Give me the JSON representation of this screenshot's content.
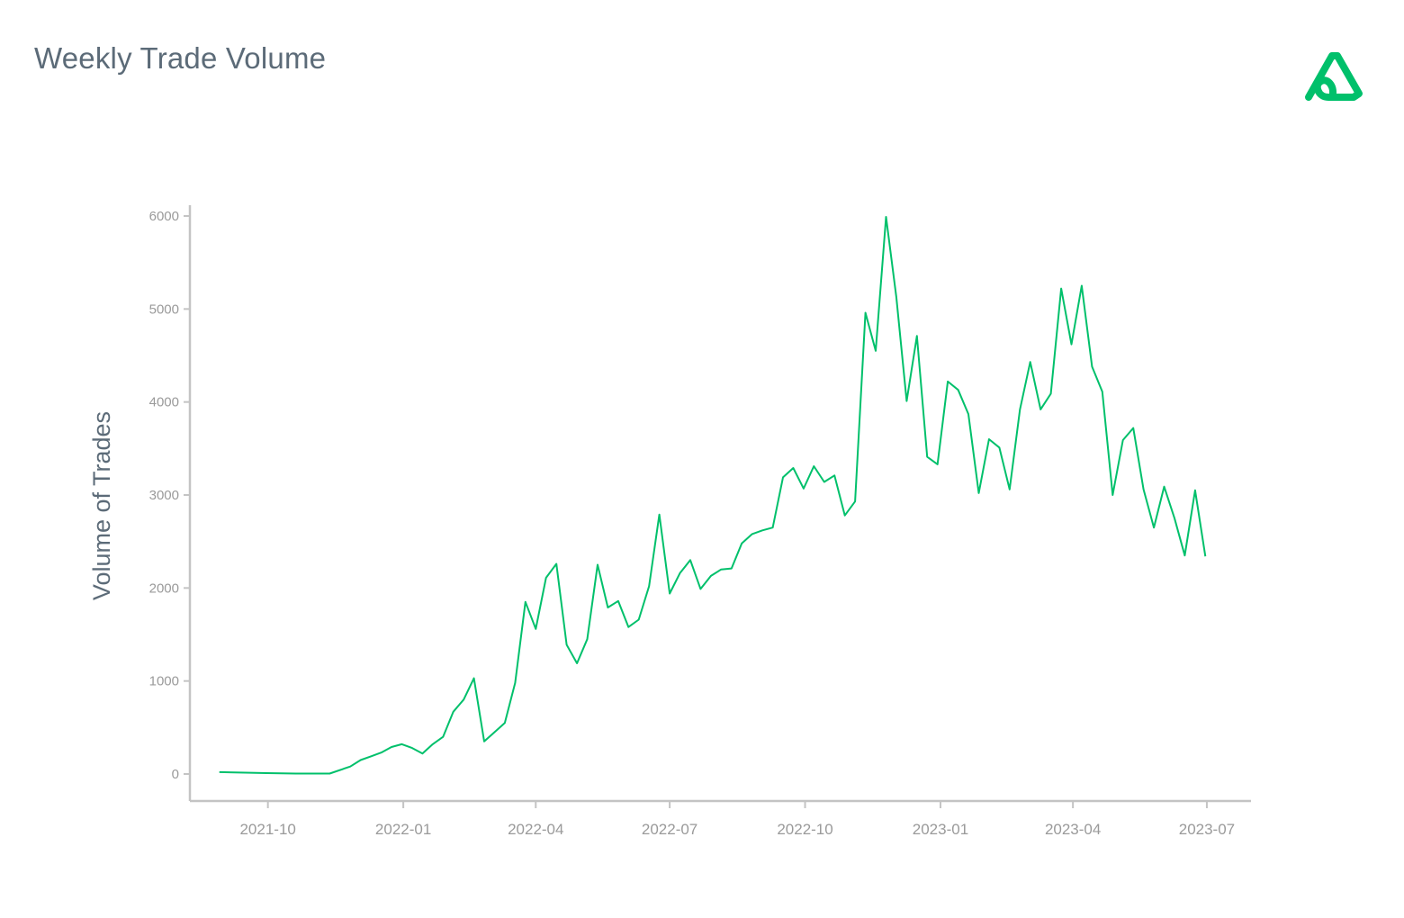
{
  "header": {
    "title": "Weekly Trade Volume",
    "logo_icon": "triangle-loop-logo-icon"
  },
  "colors": {
    "line": "#00c06b",
    "axis": "#c4c4c4",
    "tick_text": "#9a9a9a",
    "title": "#5c6b78"
  },
  "chart_data": {
    "type": "line",
    "title": "Weekly Trade Volume",
    "xlabel": "",
    "ylabel": "Volume of Trades",
    "grid": false,
    "legend": "none",
    "ylim": [
      0,
      6000
    ],
    "xlim": [
      "2021-08-09",
      "2023-07-31"
    ],
    "y_ticks": [
      0,
      1000,
      2000,
      3000,
      4000,
      5000,
      6000
    ],
    "x_ticks": [
      "2021-10",
      "2022-01",
      "2022-04",
      "2022-07",
      "2022-10",
      "2023-01",
      "2023-04",
      "2023-07"
    ],
    "series": [
      {
        "x": [
          "2021-08-29",
          "2021-09-30",
          "2021-10-20",
          "2021-11-12",
          "2021-11-26",
          "2021-12-03",
          "2021-12-10",
          "2021-12-17",
          "2021-12-24",
          "2021-12-31",
          "2022-01-07",
          "2022-01-14",
          "2022-01-21",
          "2022-01-28",
          "2022-02-04",
          "2022-02-11",
          "2022-02-18",
          "2022-02-25",
          "2022-03-04",
          "2022-03-11",
          "2022-03-18",
          "2022-03-25",
          "2022-04-01",
          "2022-04-08",
          "2022-04-15",
          "2022-04-22",
          "2022-04-29",
          "2022-05-06",
          "2022-05-13",
          "2022-05-20",
          "2022-05-27",
          "2022-06-03",
          "2022-06-10",
          "2022-06-17",
          "2022-06-24",
          "2022-07-01",
          "2022-07-08",
          "2022-07-15",
          "2022-07-22",
          "2022-07-29",
          "2022-08-05",
          "2022-08-12",
          "2022-08-19",
          "2022-08-26",
          "2022-09-02",
          "2022-09-09",
          "2022-09-16",
          "2022-09-23",
          "2022-09-30",
          "2022-10-07",
          "2022-10-14",
          "2022-10-21",
          "2022-10-28",
          "2022-11-04",
          "2022-11-11",
          "2022-11-18",
          "2022-11-25",
          "2022-12-02",
          "2022-12-09",
          "2022-12-16",
          "2022-12-23",
          "2022-12-30",
          "2023-01-06",
          "2023-01-13",
          "2023-01-20",
          "2023-01-27",
          "2023-02-03",
          "2023-02-10",
          "2023-02-17",
          "2023-02-24",
          "2023-03-03",
          "2023-03-10",
          "2023-03-17",
          "2023-03-24",
          "2023-03-31",
          "2023-04-07",
          "2023-04-14",
          "2023-04-21",
          "2023-04-28",
          "2023-05-05",
          "2023-05-12",
          "2023-05-19",
          "2023-05-26",
          "2023-06-02",
          "2023-06-09",
          "2023-06-16",
          "2023-06-23",
          "2023-06-30"
        ],
        "y": [
          20,
          10,
          5,
          5,
          80,
          150,
          190,
          230,
          290,
          320,
          280,
          220,
          320,
          400,
          670,
          800,
          1030,
          350,
          450,
          550,
          980,
          1850,
          1560,
          2110,
          2260,
          1390,
          1190,
          1450,
          2250,
          1790,
          1860,
          1580,
          1660,
          2020,
          2790,
          1940,
          2160,
          2300,
          1990,
          2130,
          2200,
          2210,
          2480,
          2580,
          2620,
          2650,
          3190,
          3290,
          3070,
          3310,
          3140,
          3210,
          2780,
          2930,
          4960,
          4550,
          5990,
          5130,
          4010,
          4710,
          3410,
          3330,
          4220,
          4130,
          3870,
          3020,
          3600,
          3510,
          3060,
          3920,
          4430,
          3920,
          4090,
          5220,
          4620,
          5250,
          4380,
          4110,
          3000,
          3590,
          3720,
          3060,
          2650,
          3090,
          2750,
          2350,
          3050,
          2340
        ]
      }
    ]
  }
}
